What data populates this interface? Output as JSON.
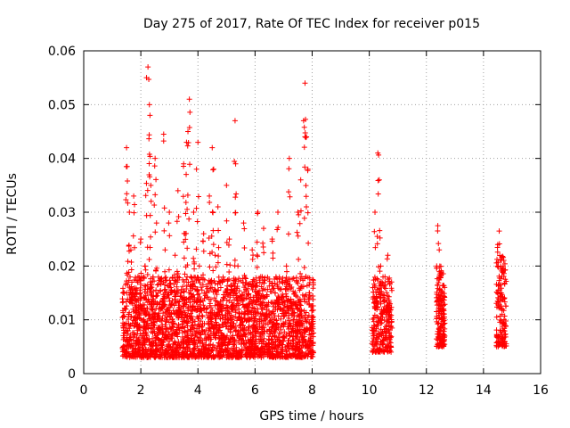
{
  "chart_data": {
    "type": "scatter",
    "title": "Day 275 of 2017, Rate Of TEC Index for receiver p015",
    "xlabel": "GPS time / hours",
    "ylabel": "ROTI / TECUs",
    "xlim": [
      0,
      16
    ],
    "ylim": [
      0,
      0.06
    ],
    "x_ticks": [
      0,
      2,
      4,
      6,
      8,
      10,
      12,
      14,
      16
    ],
    "y_ticks": [
      0,
      0.01,
      0.02,
      0.03,
      0.04,
      0.05,
      0.06
    ],
    "x_tick_labels": [
      "0",
      "2",
      "4",
      "6",
      "8",
      "10",
      "12",
      "14",
      "16"
    ],
    "y_tick_labels": [
      "0",
      "0.01",
      "0.02",
      "0.03",
      "0.04",
      "0.05",
      "0.06"
    ],
    "grid": true,
    "marker": "+",
    "color": "#ff0000",
    "series": [
      {
        "name": "ROTI",
        "points": [
          [
            1.4,
            0.005
          ],
          [
            1.45,
            0.012
          ],
          [
            1.5,
            0.042
          ],
          [
            1.52,
            0.0385
          ],
          [
            1.55,
            0.008
          ],
          [
            1.6,
            0.03
          ],
          [
            1.65,
            0.023
          ],
          [
            1.7,
            0.015
          ],
          [
            1.75,
            0.033
          ],
          [
            1.8,
            0.01
          ],
          [
            1.85,
            0.006
          ],
          [
            1.9,
            0.018
          ],
          [
            1.95,
            0.009
          ],
          [
            2.0,
            0.025
          ],
          [
            2.05,
            0.012
          ],
          [
            2.1,
            0.007
          ],
          [
            2.15,
            0.02
          ],
          [
            2.2,
            0.055
          ],
          [
            2.25,
            0.057
          ],
          [
            2.3,
            0.05
          ],
          [
            2.32,
            0.048
          ],
          [
            2.35,
            0.035
          ],
          [
            2.4,
            0.013
          ],
          [
            2.45,
            0.009
          ],
          [
            2.5,
            0.04
          ],
          [
            2.55,
            0.028
          ],
          [
            2.6,
            0.015
          ],
          [
            2.65,
            0.008
          ],
          [
            2.7,
            0.012
          ],
          [
            2.8,
            0.0445
          ],
          [
            2.85,
            0.023
          ],
          [
            2.9,
            0.01
          ],
          [
            3.0,
            0.03
          ],
          [
            3.05,
            0.016
          ],
          [
            3.1,
            0.007
          ],
          [
            3.2,
            0.022
          ],
          [
            3.25,
            0.011
          ],
          [
            3.3,
            0.034
          ],
          [
            3.35,
            0.008
          ],
          [
            3.4,
            0.015
          ],
          [
            3.5,
            0.039
          ],
          [
            3.55,
            0.026
          ],
          [
            3.6,
            0.043
          ],
          [
            3.65,
            0.045
          ],
          [
            3.7,
            0.051
          ],
          [
            3.75,
            0.018
          ],
          [
            3.8,
            0.0095
          ],
          [
            3.85,
            0.03
          ],
          [
            3.9,
            0.007
          ],
          [
            3.95,
            0.038
          ],
          [
            4.0,
            0.043
          ],
          [
            4.05,
            0.02
          ],
          [
            4.1,
            0.012
          ],
          [
            4.15,
            0.008
          ],
          [
            4.2,
            0.026
          ],
          [
            4.3,
            0.015
          ],
          [
            4.4,
            0.033
          ],
          [
            4.45,
            0.01
          ],
          [
            4.5,
            0.042
          ],
          [
            4.55,
            0.038
          ],
          [
            4.6,
            0.022
          ],
          [
            4.65,
            0.009
          ],
          [
            4.7,
            0.031
          ],
          [
            4.8,
            0.016
          ],
          [
            4.9,
            0.007
          ],
          [
            5.0,
            0.035
          ],
          [
            5.1,
            0.025
          ],
          [
            5.2,
            0.012
          ],
          [
            5.3,
            0.047
          ],
          [
            5.32,
            0.039
          ],
          [
            5.4,
            0.02
          ],
          [
            5.5,
            0.008
          ],
          [
            5.6,
            0.028
          ],
          [
            5.7,
            0.014
          ],
          [
            5.8,
            0.01
          ],
          [
            5.9,
            0.023
          ],
          [
            6.0,
            0.006
          ],
          [
            6.1,
            0.03
          ],
          [
            6.2,
            0.018
          ],
          [
            6.3,
            0.027
          ],
          [
            6.4,
            0.011
          ],
          [
            6.5,
            0.008
          ],
          [
            6.6,
            0.025
          ],
          [
            6.7,
            0.015
          ],
          [
            6.8,
            0.03
          ],
          [
            6.9,
            0.012
          ],
          [
            7.0,
            0.009
          ],
          [
            7.1,
            0.02
          ],
          [
            7.2,
            0.04
          ],
          [
            7.3,
            0.013
          ],
          [
            7.4,
            0.008
          ],
          [
            7.5,
            0.03
          ],
          [
            7.6,
            0.036
          ],
          [
            7.7,
            0.047
          ],
          [
            7.75,
            0.054
          ],
          [
            7.8,
            0.044
          ],
          [
            7.85,
            0.038
          ],
          [
            7.9,
            0.015
          ],
          [
            7.95,
            0.006
          ],
          [
            8.0,
            0.01
          ],
          [
            10.2,
            0.03
          ],
          [
            10.25,
            0.014
          ],
          [
            10.3,
            0.041
          ],
          [
            10.35,
            0.036
          ],
          [
            10.4,
            0.02
          ],
          [
            10.45,
            0.011
          ],
          [
            10.5,
            0.007
          ],
          [
            10.55,
            0.018
          ],
          [
            10.6,
            0.009
          ],
          [
            10.65,
            0.022
          ],
          [
            10.7,
            0.013
          ],
          [
            10.75,
            0.005
          ],
          [
            12.4,
            0.0275
          ],
          [
            12.45,
            0.023
          ],
          [
            12.48,
            0.018
          ],
          [
            12.5,
            0.014
          ],
          [
            12.55,
            0.01
          ],
          [
            12.58,
            0.007
          ],
          [
            12.6,
            0.012
          ],
          [
            14.5,
            0.024
          ],
          [
            14.55,
            0.0265
          ],
          [
            14.6,
            0.02
          ],
          [
            14.62,
            0.015
          ],
          [
            14.65,
            0.011
          ],
          [
            14.7,
            0.008
          ],
          [
            14.72,
            0.006
          ]
        ],
        "bands": [
          {
            "x_range": [
              1.35,
              8.05
            ],
            "y_range": [
              0.003,
              0.018
            ],
            "count": 2500
          },
          {
            "x_range": [
              10.1,
              10.8
            ],
            "y_range": [
              0.004,
              0.018
            ],
            "count": 250
          },
          {
            "x_range": [
              12.35,
              12.65
            ],
            "y_range": [
              0.005,
              0.02
            ],
            "count": 160
          },
          {
            "x_range": [
              14.45,
              14.8
            ],
            "y_range": [
              0.005,
              0.022
            ],
            "count": 130
          }
        ]
      }
    ]
  }
}
